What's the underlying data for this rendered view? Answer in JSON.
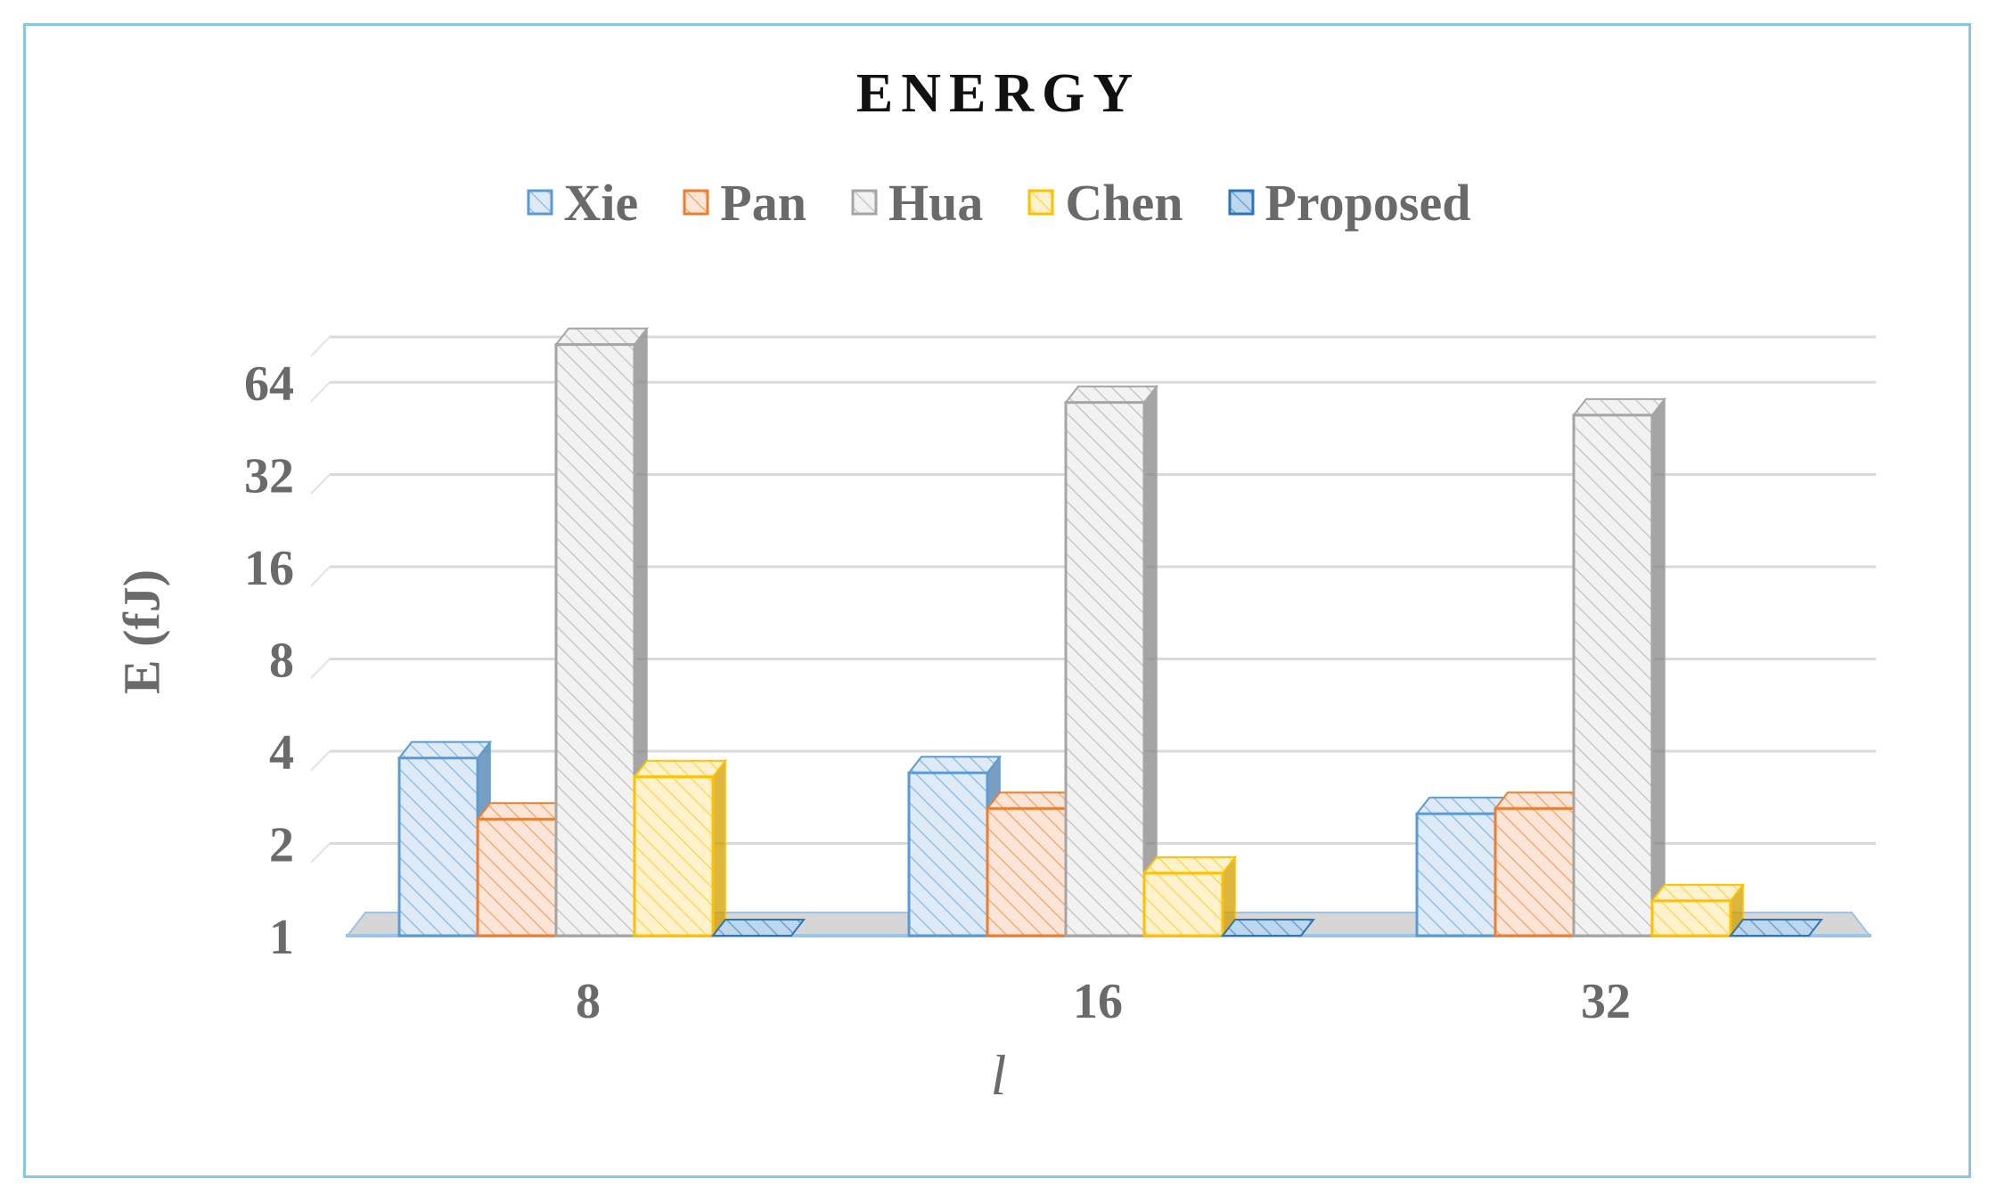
{
  "chart_data": {
    "type": "bar",
    "title": "ENERGY",
    "xlabel": "l",
    "ylabel": "E (fJ)",
    "y_scale": "log2",
    "ylim": [
      1,
      90
    ],
    "y_ticks": [
      1,
      2,
      4,
      8,
      16,
      32,
      64
    ],
    "y_tick_labels": [
      "1",
      "2",
      "4",
      "8",
      "16",
      "32",
      "64"
    ],
    "categories": [
      "8",
      "16",
      "32"
    ],
    "legend_position": "top",
    "grid": true,
    "series": [
      {
        "name": "Xie",
        "color": "#5b9bd5",
        "fill": "#deebf7",
        "values": [
          3.8,
          3.4,
          2.5
        ]
      },
      {
        "name": "Pan",
        "color": "#ed7d31",
        "fill": "#fbe5d6",
        "values": [
          2.4,
          2.6,
          2.6
        ]
      },
      {
        "name": "Hua",
        "color": "#a5a5a5",
        "fill": "#f2f2f2",
        "values": [
          85,
          55,
          50
        ]
      },
      {
        "name": "Chen",
        "color": "#ffc000",
        "fill": "#fff2cc",
        "values": [
          3.3,
          1.6,
          1.3
        ]
      },
      {
        "name": "Proposed",
        "color": "#2e75b6",
        "fill": "#bdd7ee",
        "values": [
          1.0,
          1.0,
          1.0
        ]
      }
    ]
  }
}
